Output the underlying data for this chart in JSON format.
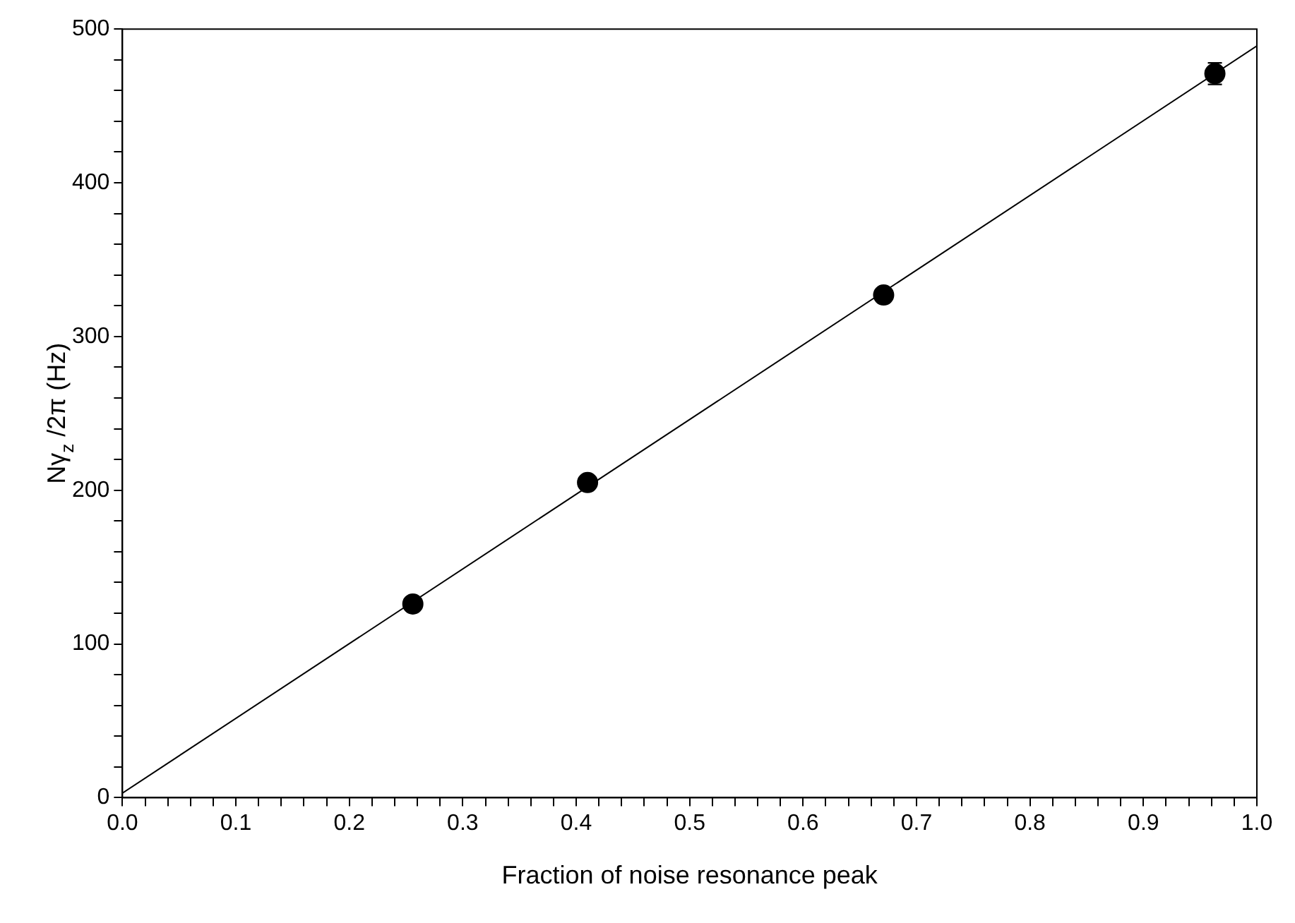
{
  "chart_data": {
    "type": "scatter",
    "xlabel": "Fraction of noise resonance peak",
    "ylabel": "Nγ$_{z}$ /2π (Hz)",
    "xlim": [
      0,
      1
    ],
    "ylim": [
      0,
      500
    ],
    "xticks": [
      {
        "value": 0,
        "label": "0.0"
      },
      {
        "value": 0.02,
        "label": null
      },
      {
        "value": 0.04,
        "label": null
      },
      {
        "value": 0.06,
        "label": null
      },
      {
        "value": 0.08,
        "label": null
      },
      {
        "value": 0.1,
        "label": "0.1"
      },
      {
        "value": 0.12,
        "label": null
      },
      {
        "value": 0.14,
        "label": null
      },
      {
        "value": 0.16,
        "label": null
      },
      {
        "value": 0.18,
        "label": null
      },
      {
        "value": 0.2,
        "label": "0.2"
      },
      {
        "value": 0.22,
        "label": null
      },
      {
        "value": 0.24,
        "label": null
      },
      {
        "value": 0.26,
        "label": null
      },
      {
        "value": 0.28,
        "label": null
      },
      {
        "value": 0.3,
        "label": "0.3"
      },
      {
        "value": 0.32,
        "label": null
      },
      {
        "value": 0.34,
        "label": null
      },
      {
        "value": 0.36,
        "label": null
      },
      {
        "value": 0.38,
        "label": null
      },
      {
        "value": 0.4,
        "label": "0.4"
      },
      {
        "value": 0.42,
        "label": null
      },
      {
        "value": 0.44,
        "label": null
      },
      {
        "value": 0.46,
        "label": null
      },
      {
        "value": 0.48,
        "label": null
      },
      {
        "value": 0.5,
        "label": "0.5"
      },
      {
        "value": 0.52,
        "label": null
      },
      {
        "value": 0.54,
        "label": null
      },
      {
        "value": 0.56,
        "label": null
      },
      {
        "value": 0.58,
        "label": null
      },
      {
        "value": 0.6,
        "label": "0.6"
      },
      {
        "value": 0.62,
        "label": null
      },
      {
        "value": 0.64,
        "label": null
      },
      {
        "value": 0.66,
        "label": null
      },
      {
        "value": 0.68,
        "label": null
      },
      {
        "value": 0.7,
        "label": "0.7"
      },
      {
        "value": 0.72,
        "label": null
      },
      {
        "value": 0.74,
        "label": null
      },
      {
        "value": 0.76,
        "label": null
      },
      {
        "value": 0.78,
        "label": null
      },
      {
        "value": 0.8,
        "label": "0.8"
      },
      {
        "value": 0.82,
        "label": null
      },
      {
        "value": 0.84,
        "label": null
      },
      {
        "value": 0.86,
        "label": null
      },
      {
        "value": 0.88,
        "label": null
      },
      {
        "value": 0.9,
        "label": "0.9"
      },
      {
        "value": 0.92,
        "label": null
      },
      {
        "value": 0.94,
        "label": null
      },
      {
        "value": 0.96,
        "label": null
      },
      {
        "value": 0.98,
        "label": null
      },
      {
        "value": 1,
        "label": "1.0"
      }
    ],
    "yticks": [
      0,
      {
        "value": 20,
        "label": null
      },
      {
        "value": 40,
        "label": null
      },
      {
        "value": 60,
        "label": null
      },
      {
        "value": 80,
        "label": null
      },
      100,
      {
        "value": 120,
        "label": null
      },
      {
        "value": 140,
        "label": null
      },
      {
        "value": 160,
        "label": null
      },
      {
        "value": 180,
        "label": null
      },
      200,
      {
        "value": 220,
        "label": null
      },
      {
        "value": 240,
        "label": null
      },
      {
        "value": 260,
        "label": null
      },
      {
        "value": 280,
        "label": null
      },
      300,
      {
        "value": 320,
        "label": null
      },
      {
        "value": 340,
        "label": null
      },
      {
        "value": 360,
        "label": null
      },
      {
        "value": 380,
        "label": null
      },
      400,
      {
        "value": 420,
        "label": null
      },
      {
        "value": 440,
        "label": null
      },
      {
        "value": 460,
        "label": null
      },
      {
        "value": 480,
        "label": null
      },
      500
    ],
    "grid": false,
    "legend": false,
    "marker": "circle",
    "series": [
      {
        "type": "scatter",
        "color": "#000000",
        "x": [
          0.256,
          0.41,
          0.671,
          0.963
        ],
        "values": [
          126,
          205,
          327,
          471
        ],
        "errors": [
          null,
          null,
          null,
          7
        ]
      },
      {
        "type": "line",
        "color": "#000000",
        "x": [
          0,
          1
        ],
        "values": [
          3,
          489
        ],
        "marker": "none",
        "line_style": "solid"
      }
    ]
  }
}
